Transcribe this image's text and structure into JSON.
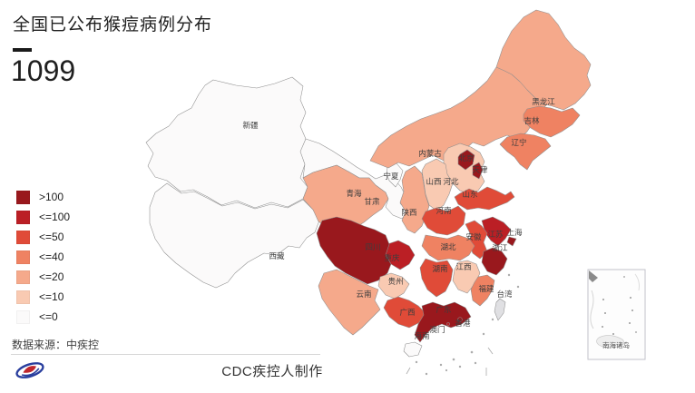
{
  "header": {
    "title": "全国已公布猴痘病例分布",
    "total": "1099"
  },
  "legend": {
    "items": [
      {
        "label": ">100",
        "level": "gt100"
      },
      {
        "label": "<=100",
        "level": "le100"
      },
      {
        "label": "<=50",
        "level": "le50"
      },
      {
        "label": "<=40",
        "level": "le40"
      },
      {
        "label": "<=20",
        "level": "le20"
      },
      {
        "label": "<=10",
        "level": "le10"
      },
      {
        "label": "<=0",
        "level": "le0"
      }
    ]
  },
  "footer": {
    "source": "数据来源：中疾控",
    "credit": "CDC疾控人制作",
    "logo_name": "cdc-logo"
  },
  "map": {
    "inset_label": "南海诸岛",
    "level_colors": {
      "gt100": "#99181d",
      "le100": "#bb1f25",
      "le50": "#e04b38",
      "le40": "#ef8262",
      "le20": "#f5a98b",
      "le10": "#f9cab2",
      "le0": "#fbfafa",
      "nodata": "#e0e0e3"
    },
    "provinces": [
      {
        "id": "xinjiang",
        "label": "新疆",
        "level": "le0"
      },
      {
        "id": "xizang",
        "label": "西藏",
        "level": "le0"
      },
      {
        "id": "gansu",
        "label": "甘肃",
        "level": "le0"
      },
      {
        "id": "qinghai",
        "label": "青海",
        "level": "le20"
      },
      {
        "id": "ningxia",
        "label": "宁夏",
        "level": "le0"
      },
      {
        "id": "neimenggu",
        "label": "内蒙古",
        "level": "le20"
      },
      {
        "id": "heilongjiang",
        "label": "黑龙江",
        "level": "le20"
      },
      {
        "id": "jilin",
        "label": "吉林",
        "level": "le40"
      },
      {
        "id": "liaoning",
        "label": "辽宁",
        "level": "le40"
      },
      {
        "id": "hebei",
        "label": "河北",
        "level": "le10"
      },
      {
        "id": "shanxi",
        "label": "山西",
        "level": "le10"
      },
      {
        "id": "shaanxi",
        "label": "陕西",
        "level": "le20"
      },
      {
        "id": "shandong",
        "label": "山东",
        "level": "le50"
      },
      {
        "id": "henan",
        "label": "河南",
        "level": "le50"
      },
      {
        "id": "jiangsu",
        "label": "江苏",
        "level": "le100"
      },
      {
        "id": "anhui",
        "label": "安徽",
        "level": "le50"
      },
      {
        "id": "hubei",
        "label": "湖北",
        "level": "le40"
      },
      {
        "id": "chongqing",
        "label": "重庆",
        "level": "le100"
      },
      {
        "id": "sichuan",
        "label": "四川",
        "level": "gt100"
      },
      {
        "id": "hunan",
        "label": "湖南",
        "level": "le50"
      },
      {
        "id": "jiangxi",
        "label": "江西",
        "level": "le10"
      },
      {
        "id": "zhejiang",
        "label": "浙江",
        "level": "gt100"
      },
      {
        "id": "shanghai",
        "label": "上海",
        "level": "gt100"
      },
      {
        "id": "guizhou",
        "label": "贵州",
        "level": "le10"
      },
      {
        "id": "yunnan",
        "label": "云南",
        "level": "le20"
      },
      {
        "id": "guangxi",
        "label": "广西",
        "level": "le50"
      },
      {
        "id": "guangdong",
        "label": "广东",
        "level": "gt100"
      },
      {
        "id": "fujian",
        "label": "福建",
        "level": "le40"
      },
      {
        "id": "taiwan",
        "label": "台湾",
        "level": "nodata"
      },
      {
        "id": "hainan",
        "label": "海南",
        "level": "le0"
      },
      {
        "id": "beijing",
        "label": "北京",
        "level": "gt100"
      },
      {
        "id": "tianjin",
        "label": "天津",
        "level": "gt100"
      },
      {
        "id": "xianggang",
        "label": "香港",
        "level": "gt100"
      },
      {
        "id": "aomen",
        "label": "澳门",
        "level": "le100"
      }
    ]
  }
}
